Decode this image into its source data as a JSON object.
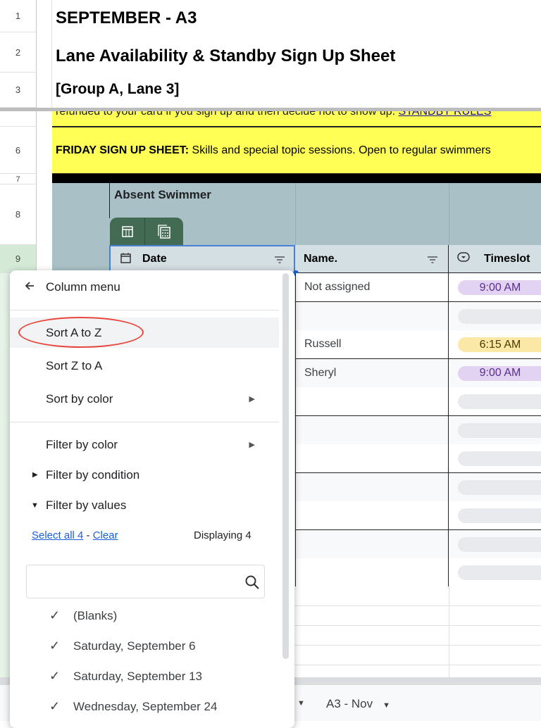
{
  "rows": [
    "1",
    "2",
    "3",
    "6",
    "7",
    "8",
    "9"
  ],
  "titles": {
    "month": "SEPTEMBER - A3",
    "sheet": "Lane Availability & Standby Sign Up Sheet",
    "group": "[Group A, Lane 3]"
  },
  "notice": {
    "text": "refunded to your card if you sign up and then decide not to show up. ",
    "link": "STANDBY RULES"
  },
  "friday": {
    "bold": "FRIDAY SIGN UP SHEET:",
    "text": " Skills and special topic sessions. Open to regular swimmers"
  },
  "table": {
    "title": "Absent Swimmer",
    "columns": [
      "Date",
      "Name.",
      "Timeslot"
    ],
    "rows": [
      {
        "name": "Not assigned",
        "time": "9:00 AM",
        "color": "#e3d3f2"
      },
      {
        "name": "",
        "time": "",
        "color": "#e8eaed"
      },
      {
        "name": "Russell",
        "time": "6:15 AM",
        "color": "#fce8a6"
      },
      {
        "name": "Sheryl",
        "time": "9:00 AM",
        "color": "#e3d3f2"
      },
      {
        "name": "",
        "time": "",
        "color": "#e8eaed"
      },
      {
        "name": "",
        "time": "",
        "color": "#e8eaed"
      },
      {
        "name": "",
        "time": "",
        "color": "#e8eaed"
      },
      {
        "name": "",
        "time": "",
        "color": "#e8eaed"
      },
      {
        "name": "",
        "time": "",
        "color": "#e8eaed"
      },
      {
        "name": "",
        "time": "",
        "color": "#e8eaed"
      },
      {
        "name": "",
        "time": "",
        "color": "#e8eaed"
      }
    ]
  },
  "menu": {
    "title": "Column menu",
    "sort_az": "Sort A to Z",
    "sort_za": "Sort Z to A",
    "sort_color": "Sort by color",
    "filter_color": "Filter by color",
    "filter_condition": "Filter by condition",
    "filter_values": "Filter by values",
    "select_all": "Select all 4",
    "sep": " - ",
    "clear": "Clear",
    "displaying": "Displaying 4",
    "search_placeholder": "",
    "values": [
      "(Blanks)",
      "Saturday, September 6",
      "Saturday, September 13",
      "Wednesday, September 24"
    ]
  },
  "sheet_tabs": {
    "current": "A3 - Nov"
  },
  "colors": {
    "accent_green": "#436b53",
    "header_teal": "#a9c1c6",
    "highlight": "#e8453c",
    "link": "#1a0dab"
  }
}
